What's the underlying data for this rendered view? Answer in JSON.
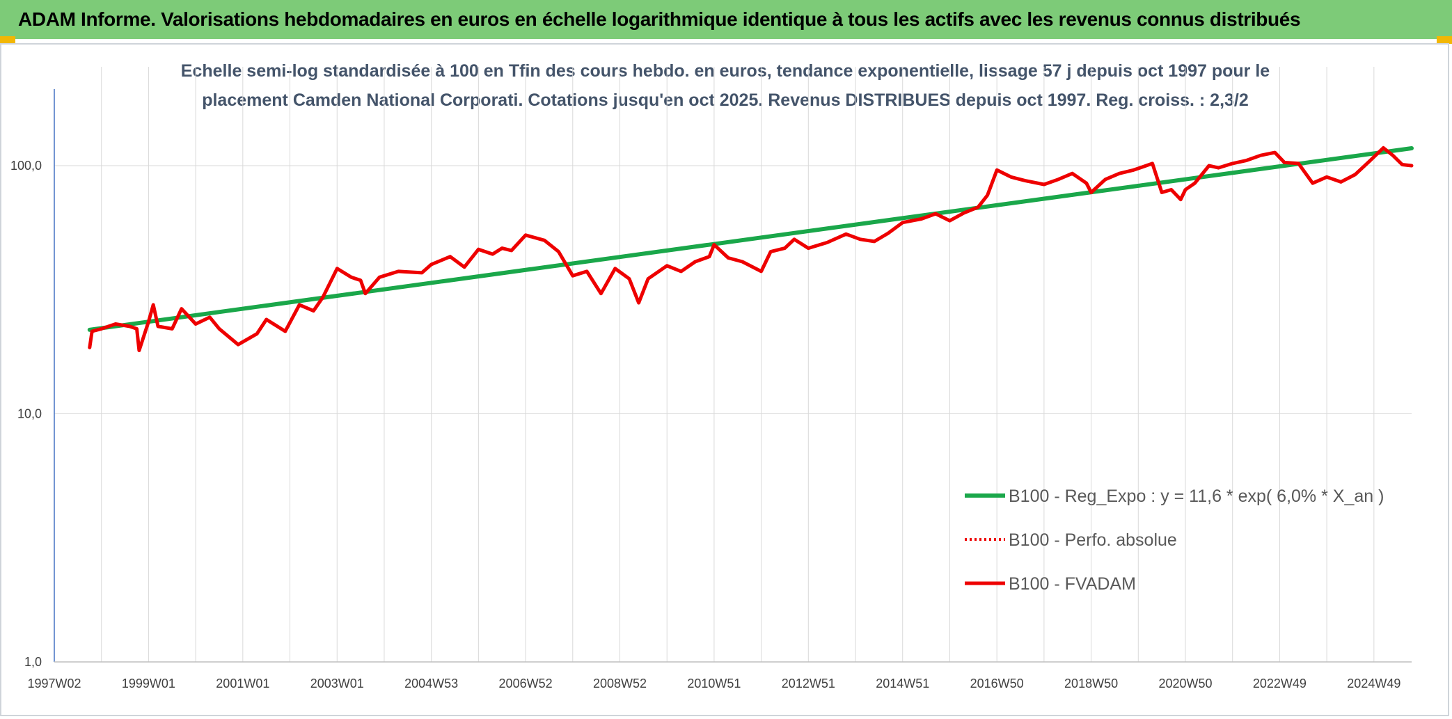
{
  "header": {
    "title": "ADAM Informe. Valorisations hebdomadaires en euros en échelle logarithmique identique à tous les actifs avec les revenus connus distribués"
  },
  "colors": {
    "header_bg": "#7dcb78",
    "corner": "#f2b705",
    "trend": "#1aa74a",
    "fvadam": "#ee0000",
    "perfo": "#ee0000",
    "axis": "#4472c4",
    "grid": "#d9d9d9"
  },
  "chart_data": {
    "type": "line",
    "title_lines": [
      "Echelle semi-log standardisée à 100 en Tfin des cours hebdo. en euros, tendance exponentielle, lissage 57 j depuis oct 1997 pour le",
      "placement Camden National Corporati. Cotations jusqu'en oct 2025. Revenus DISTRIBUES depuis oct 1997. Reg. croiss. : 2,3/2"
    ],
    "y_scale": "log",
    "ylim": [
      1,
      200
    ],
    "y_ticks": [
      {
        "value": 1,
        "label": "1,0"
      },
      {
        "value": 10,
        "label": "10,0"
      },
      {
        "value": 100,
        "label": "100,0"
      }
    ],
    "xlim": [
      1997.0,
      2025.8
    ],
    "x_ticks": [
      {
        "x": 1997.0,
        "label": "1997W02"
      },
      {
        "x": 1999.0,
        "label": "1999W01"
      },
      {
        "x": 2001.0,
        "label": "2001W01"
      },
      {
        "x": 2003.0,
        "label": "2003W01"
      },
      {
        "x": 2005.0,
        "label": "2004W53"
      },
      {
        "x": 2007.0,
        "label": "2006W52"
      },
      {
        "x": 2009.0,
        "label": "2008W52"
      },
      {
        "x": 2011.0,
        "label": "2010W51"
      },
      {
        "x": 2013.0,
        "label": "2012W51"
      },
      {
        "x": 2015.0,
        "label": "2014W51"
      },
      {
        "x": 2017.0,
        "label": "2016W50"
      },
      {
        "x": 2019.0,
        "label": "2018W50"
      },
      {
        "x": 2021.0,
        "label": "2020W50"
      },
      {
        "x": 2023.0,
        "label": "2022W49"
      },
      {
        "x": 2025.0,
        "label": "2024W49"
      }
    ],
    "legend_position": "right",
    "series": [
      {
        "name": "B100 - Reg_Expo : y = 11,6 * exp( 6,0% *  X_an )",
        "style": "trend",
        "points": [
          [
            1997.75,
            21.8
          ],
          [
            2025.8,
            117.5
          ]
        ]
      },
      {
        "name": "B100 - Perfo. absolue",
        "style": "dotted",
        "points": []
      },
      {
        "name": "B100 - FVADAM",
        "style": "solid",
        "points": [
          [
            1997.75,
            18.5
          ],
          [
            1997.8,
            21.5
          ],
          [
            1998.0,
            22.0
          ],
          [
            1998.3,
            23.0
          ],
          [
            1998.6,
            22.5
          ],
          [
            1998.75,
            22.0
          ],
          [
            1998.8,
            18.0
          ],
          [
            1999.0,
            23.5
          ],
          [
            1999.1,
            27.5
          ],
          [
            1999.2,
            22.5
          ],
          [
            1999.5,
            22.0
          ],
          [
            1999.7,
            26.5
          ],
          [
            2000.0,
            23.0
          ],
          [
            2000.3,
            24.5
          ],
          [
            2000.5,
            22.0
          ],
          [
            2000.9,
            19.0
          ],
          [
            2001.3,
            21.0
          ],
          [
            2001.5,
            24.0
          ],
          [
            2001.9,
            21.5
          ],
          [
            2002.2,
            27.5
          ],
          [
            2002.5,
            26.0
          ],
          [
            2002.7,
            29.5
          ],
          [
            2003.0,
            38.5
          ],
          [
            2003.3,
            35.5
          ],
          [
            2003.5,
            34.5
          ],
          [
            2003.6,
            30.5
          ],
          [
            2003.9,
            35.5
          ],
          [
            2004.3,
            37.5
          ],
          [
            2004.8,
            37.0
          ],
          [
            2005.0,
            40.0
          ],
          [
            2005.4,
            43.0
          ],
          [
            2005.7,
            39.0
          ],
          [
            2006.0,
            46.0
          ],
          [
            2006.3,
            44.0
          ],
          [
            2006.5,
            46.5
          ],
          [
            2006.7,
            45.5
          ],
          [
            2007.0,
            52.5
          ],
          [
            2007.4,
            50.0
          ],
          [
            2007.7,
            45.0
          ],
          [
            2008.0,
            36.0
          ],
          [
            2008.3,
            37.5
          ],
          [
            2008.6,
            30.5
          ],
          [
            2008.9,
            38.5
          ],
          [
            2009.2,
            35.0
          ],
          [
            2009.4,
            28.0
          ],
          [
            2009.6,
            35.0
          ],
          [
            2010.0,
            39.5
          ],
          [
            2010.3,
            37.5
          ],
          [
            2010.6,
            41.0
          ],
          [
            2010.9,
            43.0
          ],
          [
            2011.0,
            48.0
          ],
          [
            2011.3,
            42.5
          ],
          [
            2011.6,
            41.0
          ],
          [
            2012.0,
            37.5
          ],
          [
            2012.2,
            45.0
          ],
          [
            2012.5,
            46.5
          ],
          [
            2012.7,
            50.5
          ],
          [
            2013.0,
            46.5
          ],
          [
            2013.4,
            49.0
          ],
          [
            2013.8,
            53.0
          ],
          [
            2014.1,
            50.5
          ],
          [
            2014.4,
            49.5
          ],
          [
            2014.7,
            53.5
          ],
          [
            2015.0,
            59.0
          ],
          [
            2015.4,
            61.0
          ],
          [
            2015.7,
            64.0
          ],
          [
            2016.0,
            60.0
          ],
          [
            2016.3,
            64.5
          ],
          [
            2016.6,
            68.0
          ],
          [
            2016.8,
            76.0
          ],
          [
            2017.0,
            96.0
          ],
          [
            2017.3,
            90.0
          ],
          [
            2017.6,
            87.0
          ],
          [
            2018.0,
            84.0
          ],
          [
            2018.3,
            88.0
          ],
          [
            2018.6,
            93.0
          ],
          [
            2018.9,
            85.0
          ],
          [
            2019.0,
            78.0
          ],
          [
            2019.3,
            88.0
          ],
          [
            2019.6,
            93.0
          ],
          [
            2019.9,
            96.0
          ],
          [
            2020.1,
            99.0
          ],
          [
            2020.3,
            102.0
          ],
          [
            2020.5,
            78.0
          ],
          [
            2020.7,
            80.0
          ],
          [
            2020.9,
            73.0
          ],
          [
            2021.0,
            80.0
          ],
          [
            2021.2,
            85.0
          ],
          [
            2021.5,
            100.0
          ],
          [
            2021.7,
            98.0
          ],
          [
            2022.0,
            102.0
          ],
          [
            2022.3,
            105.0
          ],
          [
            2022.6,
            110.0
          ],
          [
            2022.9,
            113.0
          ],
          [
            2023.1,
            103.0
          ],
          [
            2023.4,
            102.0
          ],
          [
            2023.7,
            85.0
          ],
          [
            2024.0,
            90.0
          ],
          [
            2024.3,
            86.0
          ],
          [
            2024.6,
            92.0
          ],
          [
            2024.9,
            104.0
          ],
          [
            2025.2,
            118.0
          ],
          [
            2025.4,
            110.0
          ],
          [
            2025.6,
            101.0
          ],
          [
            2025.8,
            100.0
          ]
        ]
      }
    ]
  }
}
